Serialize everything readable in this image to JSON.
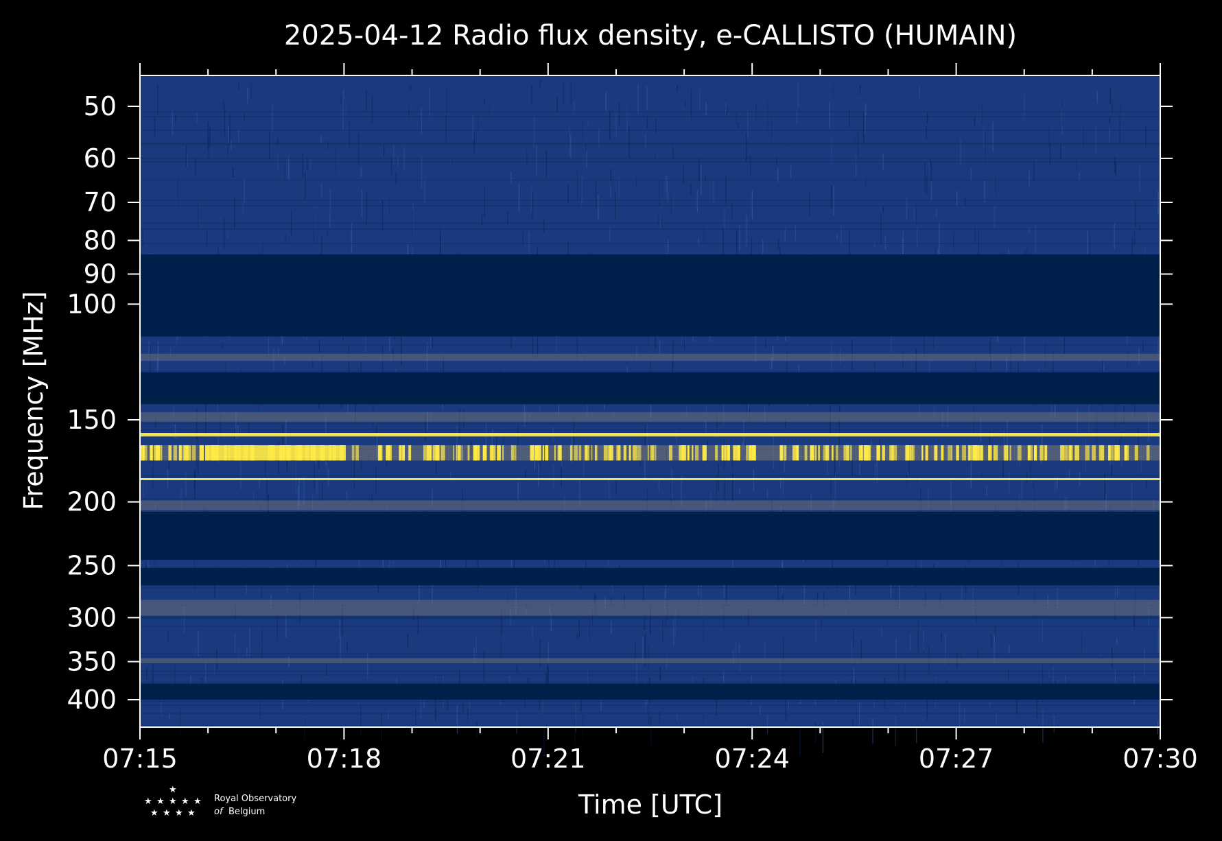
{
  "chart_data": {
    "type": "heatmap",
    "title": "2025-04-12 Radio flux density, e-CALLISTO (HUMAIN)",
    "xlabel": "Time [UTC]",
    "ylabel": "Frequency [MHz]",
    "x_range": [
      "07:15",
      "07:30"
    ],
    "y_range": [
      45,
      430
    ],
    "y_scale": "log",
    "x_ticks": [
      "07:15",
      "07:18",
      "07:21",
      "07:24",
      "07:27",
      "07:30"
    ],
    "y_ticks": [
      50,
      60,
      70,
      80,
      90,
      100,
      150,
      200,
      250,
      300,
      350,
      400
    ],
    "colormap": [
      "#00204c",
      "#1f3d7a",
      "#7f7c75",
      "#ffea46"
    ],
    "background_color": "#1a3a80",
    "quiet_bands_mhz": [
      [
        84,
        112
      ],
      [
        127,
        142
      ],
      [
        207,
        245
      ],
      [
        252,
        268
      ],
      [
        378,
        400
      ]
    ],
    "strong_emission_bands_mhz": [
      [
        157,
        159
      ],
      [
        164,
        173
      ],
      [
        184,
        185
      ]
    ],
    "moderate_bands_mhz": [
      [
        119,
        122
      ],
      [
        146,
        151
      ],
      [
        199,
        206
      ],
      [
        282,
        298
      ],
      [
        346,
        352
      ]
    ]
  },
  "logo": {
    "line1": "Royal Observatory",
    "line2_prefix": "of",
    "line2": "Belgium"
  }
}
